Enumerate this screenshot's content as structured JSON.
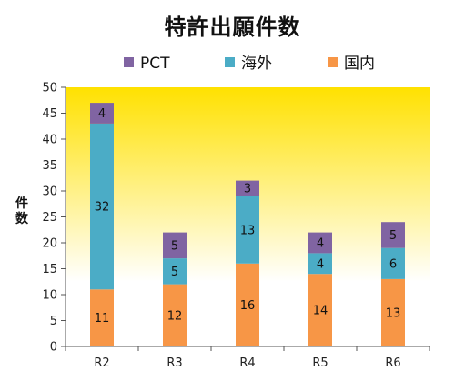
{
  "chart_data": {
    "type": "bar",
    "stacked": true,
    "title": "特許出願件数",
    "ylabel": "件数",
    "xlabel": "",
    "categories": [
      "R2",
      "R3",
      "R4",
      "R5",
      "R6"
    ],
    "series": [
      {
        "name": "国内",
        "color": "#F79646",
        "values": [
          11,
          12,
          16,
          14,
          13
        ]
      },
      {
        "name": "海外",
        "color": "#4BACC6",
        "values": [
          32,
          5,
          13,
          4,
          6
        ]
      },
      {
        "name": "PCT",
        "color": "#8064A2",
        "values": [
          4,
          5,
          3,
          4,
          5
        ]
      }
    ],
    "legend_order": [
      "PCT",
      "海外",
      "国内"
    ],
    "legend_position": "top",
    "ylim": [
      0,
      50
    ],
    "yticks": [
      0,
      5,
      10,
      15,
      20,
      25,
      30,
      35,
      40,
      45,
      50
    ],
    "grid": false,
    "background": "yellow-to-white vertical gradient",
    "colors": {
      "gradient_top": "#FFE100",
      "gradient_bottom": "#FFFFFF"
    }
  }
}
